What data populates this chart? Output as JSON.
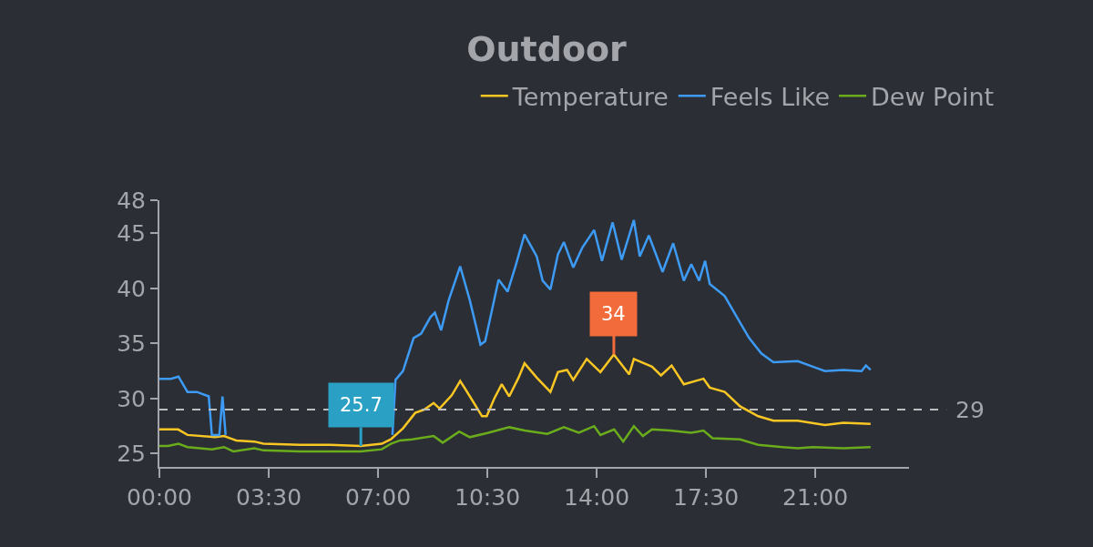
{
  "chart_data": {
    "type": "line",
    "title": "Outdoor",
    "legend": "top right",
    "grid": false,
    "marker": "none",
    "line_style": "solid",
    "xlim": [
      0,
      24
    ],
    "xticks": [
      {
        "value": 0,
        "label": "00:00"
      },
      {
        "value": 3.5,
        "label": "03:30"
      },
      {
        "value": 7,
        "label": "07:00"
      },
      {
        "value": 10.5,
        "label": "10:30"
      },
      {
        "value": 14,
        "label": "14:00"
      },
      {
        "value": 17.5,
        "label": "17:30"
      },
      {
        "value": 21,
        "label": "21:00"
      }
    ],
    "ylim": [
      23.8,
      48
    ],
    "yticks": [
      25,
      30,
      35,
      40,
      45,
      48
    ],
    "ref_lines": [
      {
        "axis": "y",
        "value": 29,
        "label": "29",
        "color": "#bdbdbd",
        "line_style": "dashed"
      }
    ],
    "annotations": [
      {
        "text": "25.7",
        "x": 6.45,
        "y": 25.7
      },
      {
        "text": "34",
        "x": 14.55,
        "y": 34
      }
    ],
    "series": [
      {
        "name": "Temperature",
        "color": "#f9c623",
        "x": [
          0,
          0.6,
          0.9,
          1.78,
          2.07,
          2.46,
          3.04,
          3.33,
          4.5,
          5.47,
          6.45,
          7.12,
          7.41,
          7.8,
          8.19,
          8.48,
          8.78,
          8.97,
          9.36,
          9.63,
          9.94,
          10.33,
          10.48,
          10.72,
          10.96,
          11.2,
          11.5,
          11.69,
          12.08,
          12.52,
          12.76,
          13.05,
          13.25,
          13.68,
          14.12,
          14.55,
          15.04,
          15.19,
          15.77,
          16.06,
          16.4,
          16.79,
          17.42,
          17.62,
          18.1,
          18.59,
          19.17,
          19.66,
          20.44,
          21.31,
          21.9,
          22.77
        ],
        "values": [
          27.2,
          27.2,
          26.7,
          26.5,
          26.6,
          26.2,
          26.1,
          25.9,
          25.8,
          25.8,
          25.7,
          25.9,
          26.3,
          27.3,
          28.7,
          29.0,
          29.6,
          29.1,
          30.3,
          31.6,
          30.2,
          28.4,
          28.4,
          30.0,
          31.3,
          30.2,
          31.9,
          33.2,
          31.9,
          30.6,
          32.4,
          32.6,
          31.7,
          33.6,
          32.4,
          34,
          32.2,
          33.6,
          32.9,
          32.1,
          33.0,
          31.3,
          31.8,
          31.0,
          30.6,
          29.3,
          28.4,
          28.0,
          28.0,
          27.6,
          27.8,
          27.7
        ]
      },
      {
        "name": "Feels Like",
        "color": "#3d9bf5",
        "x": [
          0,
          0.37,
          0.61,
          0.9,
          1.2,
          1.58,
          1.68,
          1.92,
          2.02,
          2.12,
          2.2,
          7.4,
          7.46,
          7.56,
          7.8,
          8.14,
          8.38,
          8.68,
          8.82,
          9.02,
          9.26,
          9.63,
          9.94,
          10.28,
          10.43,
          10.86,
          11.15,
          11.4,
          11.69,
          12.08,
          12.27,
          12.52,
          12.76,
          12.95,
          13.25,
          13.54,
          13.92,
          14.17,
          14.51,
          14.8,
          15.19,
          15.38,
          15.67,
          16.11,
          16.45,
          16.79,
          17.03,
          17.28,
          17.47,
          17.62,
          18.1,
          18.59,
          18.88,
          19.27,
          19.66,
          20.44,
          20.92,
          21.31,
          21.9,
          22.48,
          22.62,
          22.77
        ],
        "values": [
          31.8,
          31.8,
          32.0,
          30.6,
          30.6,
          30.2,
          26.7,
          26.7,
          30.2,
          26.7,
          null,
          null,
          26.7,
          31.7,
          32.5,
          35.5,
          35.9,
          37.4,
          37.8,
          36.2,
          38.9,
          42.0,
          38.9,
          34.9,
          35.2,
          40.8,
          39.7,
          42.0,
          44.9,
          42.9,
          40.7,
          39.9,
          43.1,
          44.2,
          41.9,
          43.7,
          45.3,
          42.5,
          46.0,
          42.6,
          46.2,
          42.9,
          44.8,
          41.5,
          44.1,
          40.7,
          42.2,
          40.7,
          42.5,
          40.4,
          39.3,
          36.9,
          35.5,
          34.1,
          33.3,
          33.4,
          32.9,
          32.5,
          32.6,
          32.5,
          33.0,
          32.6
        ]
      },
      {
        "name": "Dew Point",
        "color": "#6aac1c",
        "x": [
          0,
          0.28,
          0.61,
          0.9,
          1.68,
          2.07,
          2.37,
          3.04,
          3.33,
          4.5,
          5.96,
          6.44,
          7.12,
          7.41,
          7.7,
          8.09,
          8.78,
          9.07,
          9.6,
          9.94,
          10.53,
          11.2,
          11.69,
          12.42,
          12.95,
          13.43,
          13.92,
          14.12,
          14.56,
          14.85,
          15.19,
          15.48,
          15.77,
          16.35,
          17.03,
          17.42,
          17.71,
          18.59,
          19.17,
          19.95,
          20.44,
          20.92,
          21.9,
          22.77
        ],
        "values": [
          25.7,
          25.7,
          25.9,
          25.6,
          25.4,
          25.6,
          25.2,
          25.5,
          25.3,
          25.2,
          25.2,
          25.2,
          25.4,
          25.9,
          26.2,
          26.3,
          26.6,
          26.0,
          27.0,
          26.5,
          26.9,
          27.4,
          27.1,
          26.8,
          27.4,
          26.9,
          27.5,
          26.7,
          27.2,
          26.1,
          27.5,
          26.6,
          27.2,
          27.1,
          26.9,
          27.1,
          26.4,
          26.3,
          25.8,
          25.6,
          25.5,
          25.6,
          25.5,
          25.6
        ]
      }
    ]
  }
}
